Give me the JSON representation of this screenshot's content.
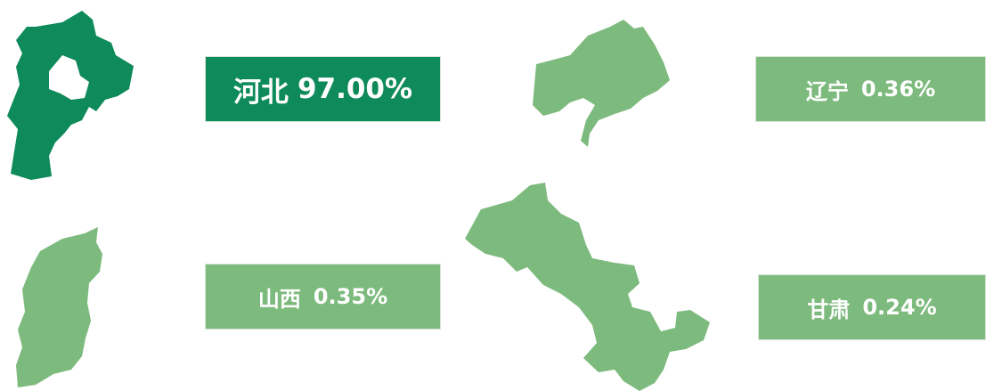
{
  "regions": [
    {
      "name": "河北",
      "value": "97.00%"
    },
    {
      "name": "辽宁",
      "value": "0.36%"
    },
    {
      "name": "山西",
      "value": "0.35%"
    },
    {
      "name": "甘肃",
      "value": "0.24%"
    }
  ]
}
